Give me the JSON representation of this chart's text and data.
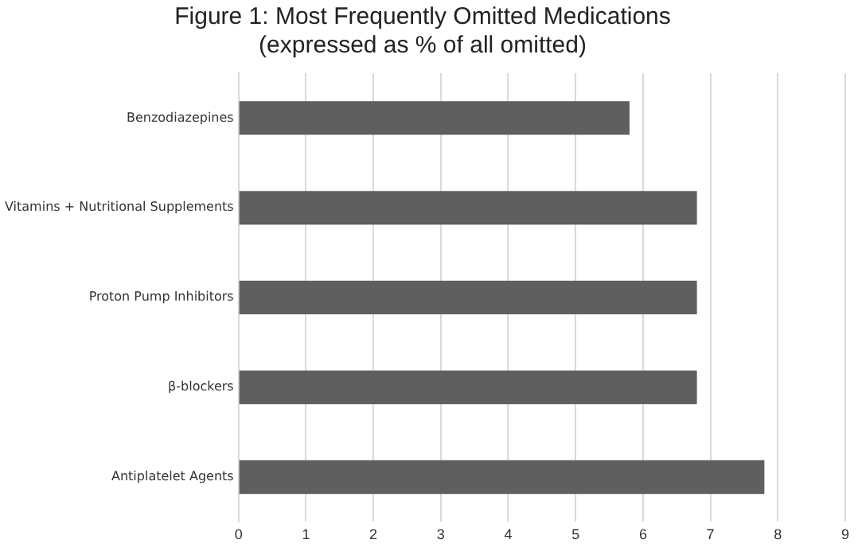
{
  "chart_data": {
    "type": "bar",
    "orientation": "horizontal",
    "title": "Figure 1: Most Frequently Omitted Medications\n(expressed as % of all omitted)",
    "categories": [
      "Benzodiazepines",
      "Vitamins + Nutritional Supplements",
      "Proton Pump Inhibitors",
      "β-blockers",
      "Antiplatelet Agents"
    ],
    "values": [
      5.8,
      6.8,
      6.8,
      6.8,
      7.8
    ],
    "color": "#5f5f5f",
    "xlim": [
      0,
      9
    ],
    "xticks": [
      0,
      1,
      2,
      3,
      4,
      5,
      6,
      7,
      8,
      9
    ],
    "grid": "x",
    "legend": false
  }
}
